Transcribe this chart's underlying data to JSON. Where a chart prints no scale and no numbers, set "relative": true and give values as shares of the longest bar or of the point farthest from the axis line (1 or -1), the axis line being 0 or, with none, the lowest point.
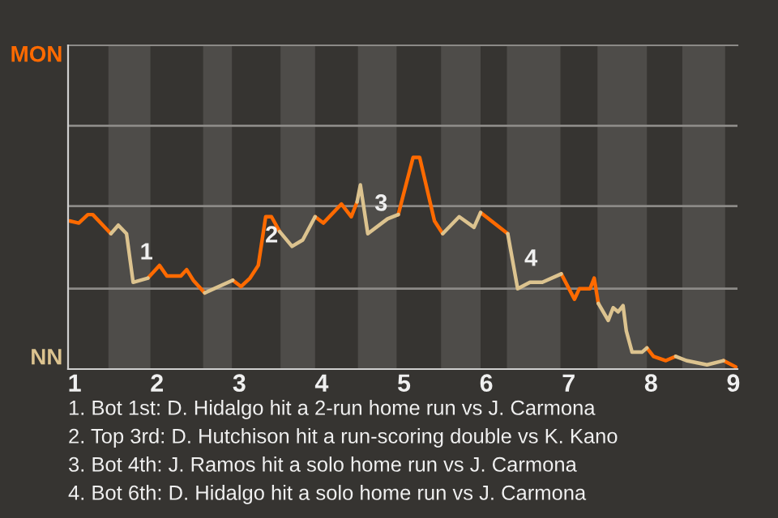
{
  "chart_data": {
    "type": "line",
    "relative": true,
    "xlim": [
      0.92,
      9.05
    ],
    "xticks": [
      1,
      2,
      3,
      4,
      5,
      6,
      7,
      8,
      9
    ],
    "ref_lines": [
      {
        "axis": "y",
        "value": 0.38,
        "color": "#8c8a87"
      },
      {
        "axis": "y",
        "value": 0.77,
        "color": "#8c8a87"
      },
      {
        "axis": "y",
        "value": 1.15,
        "color": "#8c8a87"
      }
    ],
    "legend": false,
    "marker": "none",
    "line_style": "solid",
    "series": [
      {
        "color": "#ff6a00",
        "x": [
          0.94,
          1.05,
          1.16,
          1.22,
          1.44,
          1.5,
          1.89,
          2.03,
          2.12,
          2.29,
          2.36,
          2.44,
          2.58,
          2.7,
          2.92,
          3.02,
          3.13,
          3.23,
          3.32,
          3.39,
          3.49,
          3.6,
          3.92,
          4.02,
          4.24,
          4.36,
          4.43,
          4.45,
          4.93,
          5.11,
          5.19,
          5.37,
          5.47,
          5.6,
          5.93,
          6.26,
          6.3,
          6.91,
          7.07,
          7.13,
          7.26,
          7.31,
          7.36,
          7.4,
          7.95,
          8.03,
          8.18,
          8.3,
          8.5,
          8.88,
          9.03
        ],
        "values": [
          0.7,
          0.69,
          0.73,
          0.73,
          0.64,
          null,
          0.43,
          0.49,
          0.44,
          0.44,
          0.47,
          0.42,
          0.36,
          null,
          0.42,
          0.39,
          0.43,
          0.49,
          0.72,
          0.72,
          0.65,
          null,
          0.72,
          0.69,
          0.78,
          0.72,
          0.79,
          null,
          0.73,
          1,
          1,
          0.7,
          0.64,
          null,
          0.74,
          0.64,
          null,
          0.45,
          0.33,
          0.38,
          0.38,
          0.43,
          0.31,
          null,
          0.1,
          0.06,
          0.04,
          0.06,
          null,
          0.04,
          0.01
        ]
      },
      {
        "color": "#dcc38f",
        "x": [
          1.44,
          1.53,
          1.63,
          1.71,
          1.89,
          2.0,
          2.58,
          2.92,
          3.0,
          3.49,
          3.64,
          3.77,
          3.92,
          4.0,
          4.43,
          4.47,
          4.56,
          4.8,
          4.93,
          5.0,
          5.47,
          5.67,
          5.85,
          5.93,
          6.0,
          6.26,
          6.38,
          6.53,
          6.68,
          6.91,
          7.0,
          7.36,
          7.48,
          7.54,
          7.6,
          7.66,
          7.7,
          7.77,
          7.89,
          7.95,
          8.0,
          8.3,
          8.43,
          8.68,
          8.88
        ],
        "values": [
          0.64,
          0.68,
          0.64,
          0.41,
          0.43,
          null,
          0.36,
          0.42,
          null,
          0.65,
          0.58,
          0.61,
          0.72,
          null,
          0.79,
          0.87,
          0.64,
          0.71,
          0.73,
          null,
          0.64,
          0.72,
          0.67,
          0.74,
          null,
          0.64,
          0.38,
          0.41,
          0.41,
          0.45,
          null,
          0.31,
          0.23,
          0.29,
          0.27,
          0.3,
          0.18,
          0.08,
          0.08,
          0.1,
          null,
          0.06,
          0.04,
          0.02,
          0.04
        ]
      }
    ],
    "bands": [
      {
        "axis": "x",
        "from": 1.41,
        "to": 1.92,
        "color": "#4e4c49"
      },
      {
        "axis": "x",
        "from": 2.56,
        "to": 2.91,
        "color": "#4e4c49"
      },
      {
        "axis": "x",
        "from": 3.5,
        "to": 3.92,
        "color": "#4e4c49"
      },
      {
        "axis": "x",
        "from": 4.44,
        "to": 4.91,
        "color": "#4e4c49"
      },
      {
        "axis": "x",
        "from": 5.45,
        "to": 5.93,
        "color": "#4e4c49"
      },
      {
        "axis": "x",
        "from": 6.25,
        "to": 6.9,
        "color": "#4e4c49"
      },
      {
        "axis": "x",
        "from": 7.35,
        "to": 7.95,
        "color": "#4e4c49"
      },
      {
        "axis": "x",
        "from": 8.38,
        "to": 8.9,
        "color": "#4e4c49"
      }
    ],
    "annotations": [
      "MON",
      "NN",
      {
        "text": "1",
        "x": 1.71,
        "y": 0.41
      },
      {
        "text": "2",
        "x": 3.23,
        "y": 0.49
      },
      {
        "text": "3",
        "x": 4.56,
        "y": 0.64
      },
      {
        "text": "4",
        "x": 6.38,
        "y": 0.38
      },
      "1. Bot 1st: D. Hidalgo hit a 2-run home run vs J. Carmona",
      "2. Top 3rd: D. Hutchison hit a run-scoring double vs K. Kano",
      "3. Bot 4th: J. Ramos hit a solo home run vs J. Carmona",
      "4. Bot 6th: D. Hidalgo hit a solo home run vs J. Carmona"
    ]
  }
}
